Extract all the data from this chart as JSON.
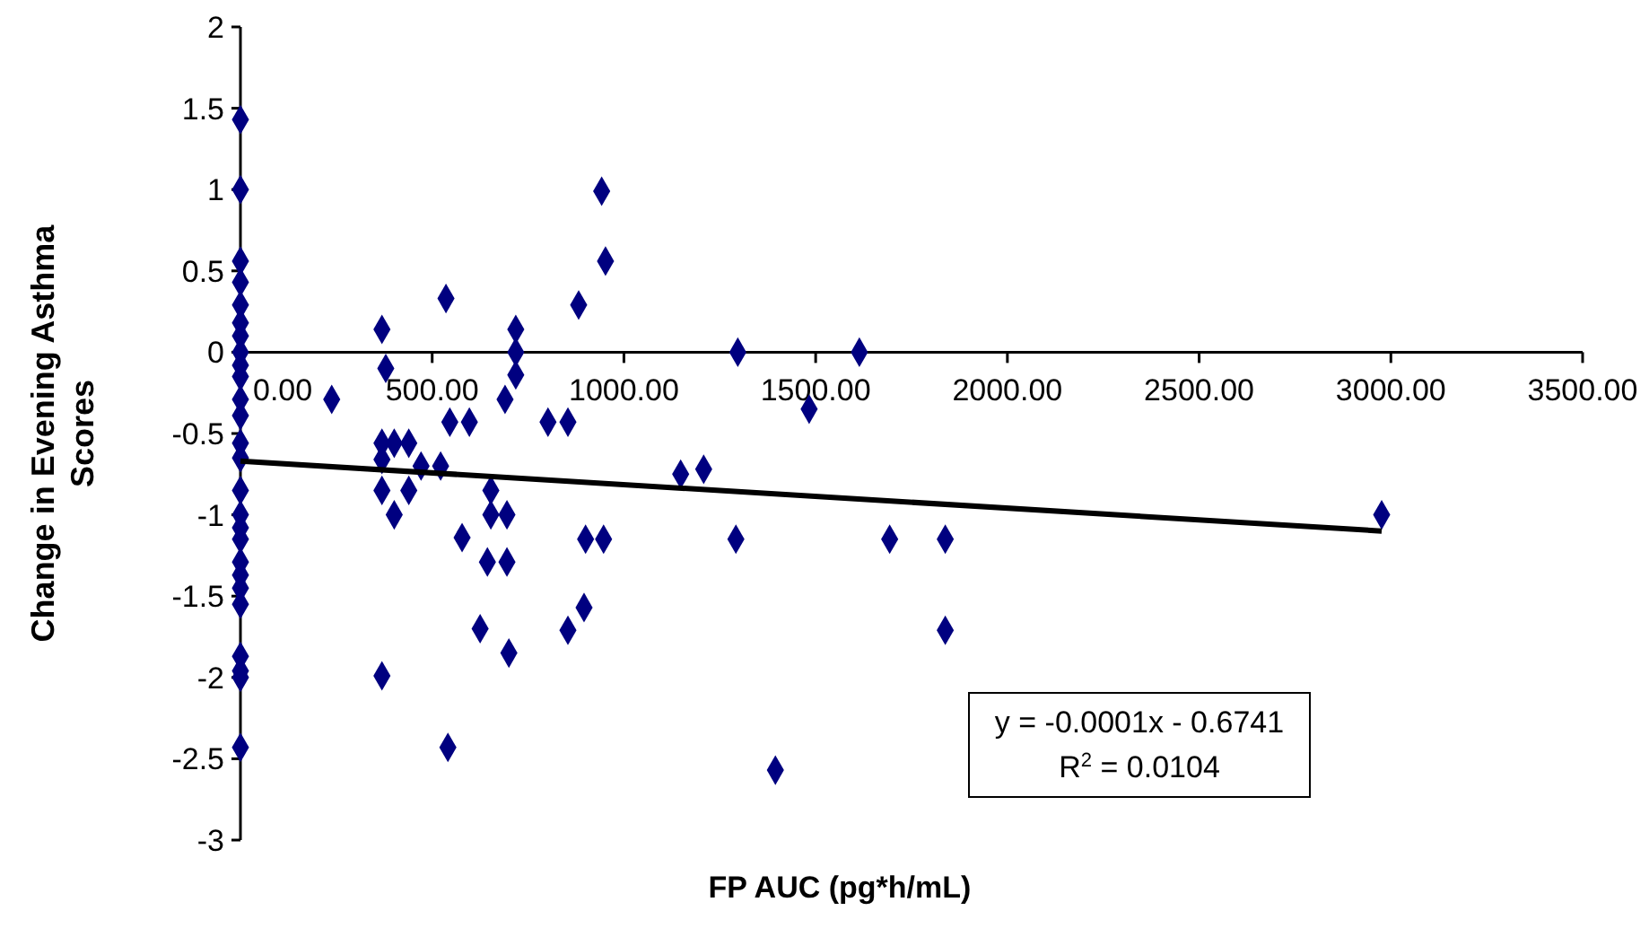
{
  "chart_data": {
    "type": "scatter",
    "xlabel": "FP AUC (pg*h/mL)",
    "ylabel": "Change in Evening Asthma Scores",
    "xlim": [
      0,
      3500
    ],
    "ylim": [
      -3,
      2
    ],
    "xticks": [
      {
        "value": 0,
        "label": "0.00"
      },
      {
        "value": 500,
        "label": "500.00"
      },
      {
        "value": 1000,
        "label": "1000.00"
      },
      {
        "value": 1500,
        "label": "1500.00"
      },
      {
        "value": 2000,
        "label": "2000.00"
      },
      {
        "value": 2500,
        "label": "2500.00"
      },
      {
        "value": 3000,
        "label": "3000.00"
      },
      {
        "value": 3500,
        "label": "3500.00"
      }
    ],
    "yticks": [
      -3,
      -2.5,
      -2,
      -1.5,
      -1,
      -0.5,
      0,
      0.5,
      1,
      1.5,
      2
    ],
    "grid": false,
    "marker": "diamond",
    "series": [
      {
        "color": "#000080",
        "x": [
          0,
          0,
          0,
          0,
          0,
          0,
          0,
          0,
          0,
          0,
          0,
          0,
          0,
          0,
          0,
          0,
          0,
          0,
          0,
          0,
          0,
          0,
          0,
          0,
          0,
          0,
          238,
          369,
          379,
          369,
          401,
          439,
          369,
          471,
          522,
          369,
          439,
          401,
          369,
          536,
          546,
          597,
          690,
          718,
          718,
          718,
          802,
          653,
          695,
          653,
          578,
          644,
          695,
          625,
          700,
          541,
          854,
          942,
          952,
          882,
          1297,
          1614,
          1483,
          1148,
          1208,
          900,
          947,
          1292,
          1693,
          1838,
          896,
          854,
          1395,
          1838,
          2976
        ],
        "values": [
          1.43,
          1.0,
          0.56,
          0.43,
          0.29,
          0.18,
          0.1,
          0,
          -0.08,
          -0.15,
          -0.29,
          -0.39,
          -0.56,
          -0.65,
          -0.85,
          -1.0,
          -1.08,
          -1.15,
          -1.29,
          -1.37,
          -1.45,
          -1.55,
          -1.87,
          -1.96,
          -2.0,
          -2.43,
          -0.29,
          0.14,
          -0.1,
          -0.56,
          -0.56,
          -0.56,
          -0.66,
          -0.7,
          -0.7,
          -0.85,
          -0.85,
          -1.0,
          -1.99,
          0.33,
          -0.43,
          -0.43,
          -0.29,
          0.14,
          0,
          -0.14,
          -0.43,
          -1.0,
          -1.0,
          -0.85,
          -1.14,
          -1.29,
          -1.29,
          -1.7,
          -1.85,
          -2.43,
          -0.43,
          0.99,
          0.56,
          0.29,
          0,
          0,
          -0.35,
          -0.75,
          -0.72,
          -1.15,
          -1.15,
          -1.15,
          -1.15,
          -1.15,
          -1.57,
          -1.71,
          -2.57,
          -1.71,
          -1.0
        ]
      },
      {
        "type": "line",
        "color": "#000000",
        "line_style": "solid",
        "marker": "none",
        "x": [
          0,
          2976
        ],
        "values": [
          -0.67,
          -1.1
        ]
      }
    ],
    "annotations": [
      "y = -0.0001x - 0.6741",
      "R$^{2}$ = 0.0104"
    ]
  }
}
